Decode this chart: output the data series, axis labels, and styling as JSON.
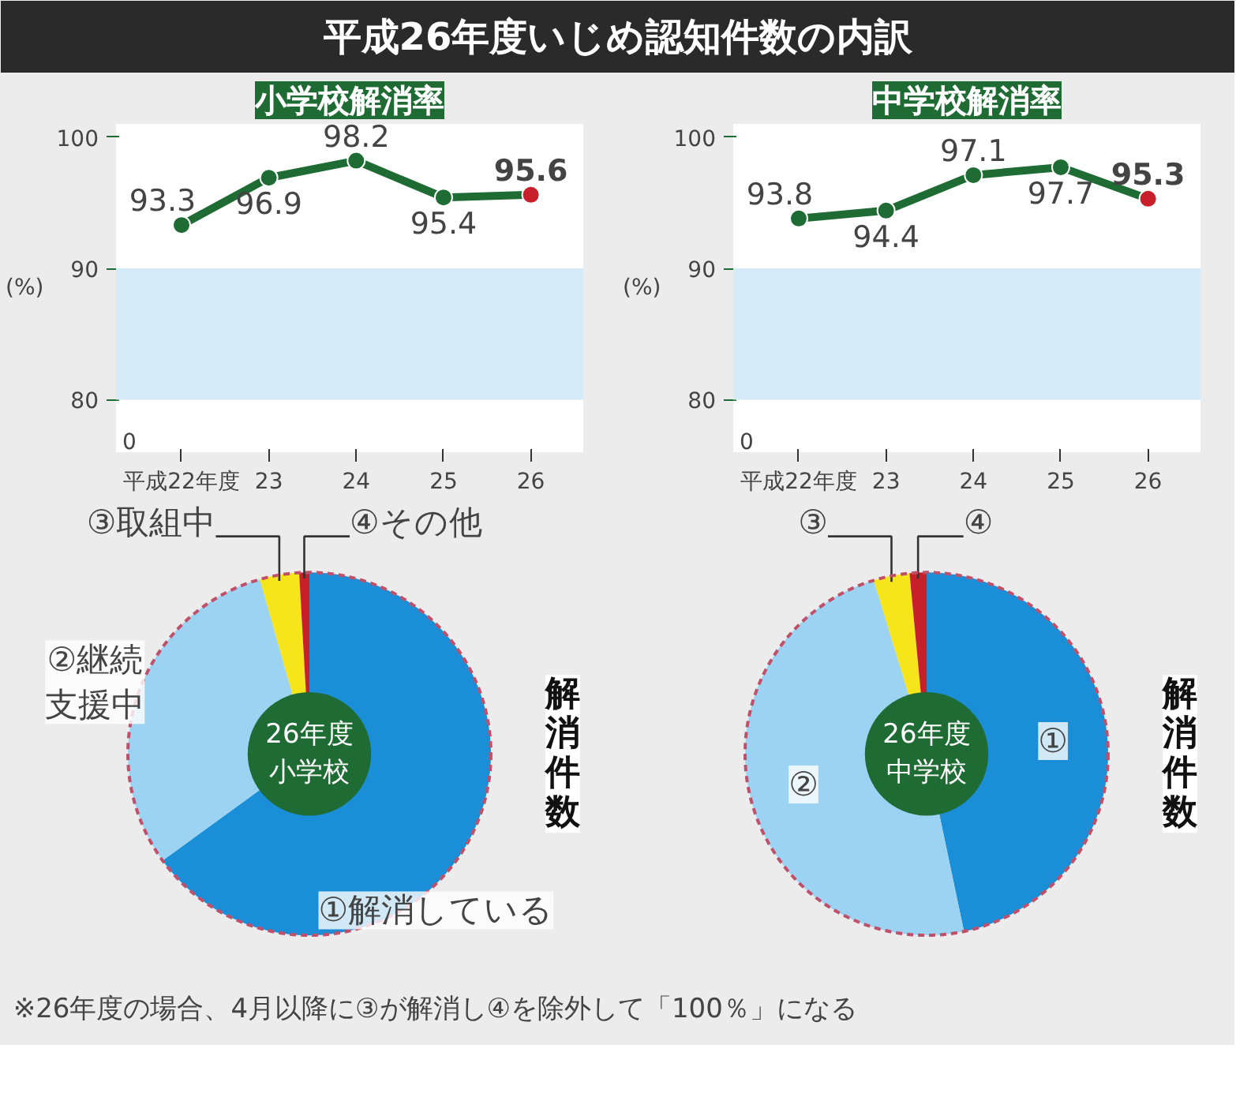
{
  "chart_data": [
    {
      "type": "other",
      "title": "平成26年度いじめ認知件数の内訳"
    },
    {
      "type": "line",
      "title": "小学校解消率",
      "ylabel": "(%)",
      "categories": [
        "平成22年度",
        "23",
        "24",
        "25",
        "26"
      ],
      "ylim": [
        76,
        101
      ],
      "yticks": [
        80,
        90,
        100
      ],
      "marker": "circle",
      "data_labels": true,
      "annotations": [
        "0"
      ],
      "series": [
        {
          "color": "#1f6b34",
          "colors": [
            "#1f6b34",
            "#1f6b34",
            "#1f6b34",
            "#1f6b34",
            "#c8202a"
          ],
          "values": [
            93.3,
            96.9,
            98.2,
            95.4,
            95.6
          ]
        }
      ],
      "bands": [
        {
          "axis": "y",
          "from": 80,
          "to": 90,
          "color": "#d6ebf8"
        }
      ]
    },
    {
      "type": "line",
      "title": "中学校解消率",
      "ylabel": "(%)",
      "categories": [
        "平成22年度",
        "23",
        "24",
        "25",
        "26"
      ],
      "ylim": [
        76,
        101
      ],
      "yticks": [
        80,
        90,
        100
      ],
      "marker": "circle",
      "data_labels": true,
      "annotations": [
        "0"
      ],
      "series": [
        {
          "color": "#1f6b34",
          "colors": [
            "#1f6b34",
            "#1f6b34",
            "#1f6b34",
            "#1f6b34",
            "#c8202a"
          ],
          "values": [
            93.8,
            94.4,
            97.1,
            97.7,
            95.3
          ]
        }
      ],
      "bands": [
        {
          "axis": "y",
          "from": 80,
          "to": 90,
          "color": "#d6ebf8"
        }
      ]
    },
    {
      "type": "donut",
      "categories": [
        "①解消している",
        "②継続支援中",
        "③取組中",
        "④その他"
      ],
      "values": [
        65,
        30.6,
        3.5,
        0.9
      ],
      "colors": [
        "#1a8fd8",
        "#9dd3f2",
        "#f5e51a",
        "#c8202a"
      ],
      "annotations": [
        "26年度小学校",
        "解消件数"
      ]
    },
    {
      "type": "donut",
      "categories": [
        "①",
        "②",
        "③",
        "④"
      ],
      "values": [
        46.7,
        48.6,
        3.2,
        1.5
      ],
      "colors": [
        "#1a8fd8",
        "#9dd3f2",
        "#f5e51a",
        "#c8202a"
      ],
      "annotations": [
        "26年度中学校",
        "解消件数"
      ]
    },
    {
      "type": "other",
      "annotations": [
        "※26年度の場合、4月以降に③が解消し④を除外して「100％」になる"
      ]
    }
  ]
}
